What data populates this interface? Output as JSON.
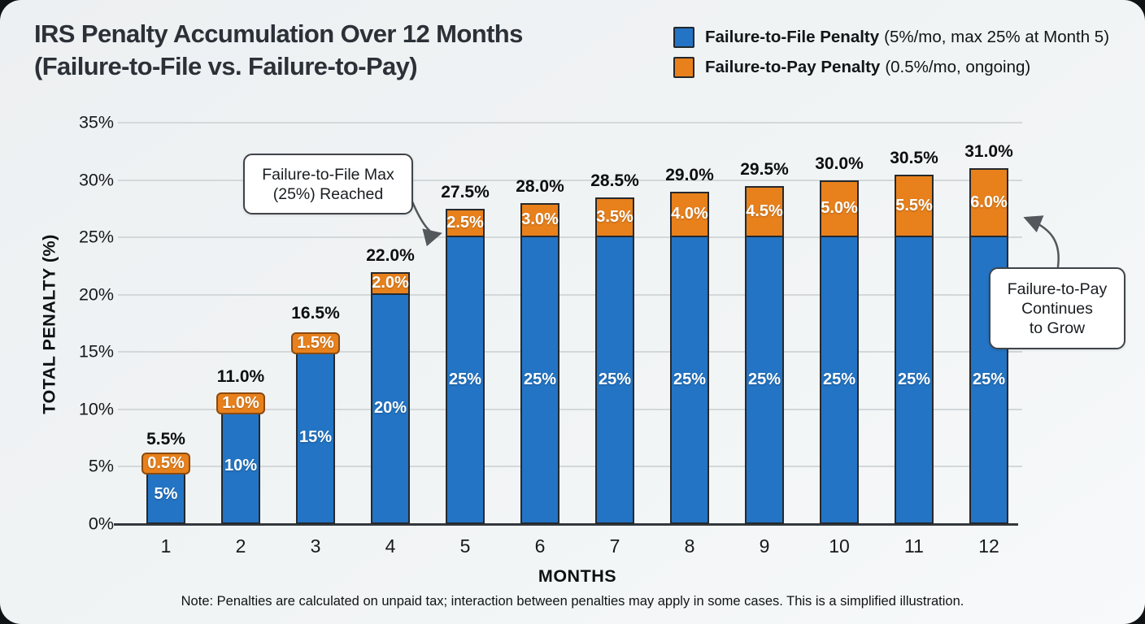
{
  "header": {
    "title_line1": "IRS Penalty Accumulation Over 12 Months",
    "title_line2": "(Failure-to-File vs. Failure-to-Pay)"
  },
  "legend": {
    "items": [
      {
        "swatch_color": "#2374c4",
        "name": "Failure-to-File Penalty",
        "detail": "(5%/mo, max 25% at Month 5)"
      },
      {
        "swatch_color": "#e8811c",
        "name": "Failure-to-Pay Penalty",
        "detail": "(0.5%/mo, ongoing)"
      }
    ]
  },
  "chart_data": {
    "type": "bar",
    "stacked": true,
    "title": "IRS Penalty Accumulation Over 12 Months (Failure-to-File vs. Failure-to-Pay)",
    "xlabel": "MONTHS",
    "ylabel": "TOTAL PENALTY (%)",
    "ylim": [
      0,
      35
    ],
    "yticks": [
      "0%",
      "5%",
      "10%",
      "15%",
      "20%",
      "25%",
      "30%",
      "35%"
    ],
    "grid": true,
    "legend_position": "top-right",
    "categories": [
      "1",
      "2",
      "3",
      "4",
      "5",
      "6",
      "7",
      "8",
      "9",
      "10",
      "11",
      "12"
    ],
    "series": [
      {
        "name": "Failure-to-File Penalty",
        "color": "#2374c4",
        "values": [
          5,
          10,
          15,
          20,
          25,
          25,
          25,
          25,
          25,
          25,
          25,
          25
        ],
        "labels": [
          "5%",
          "10%",
          "15%",
          "20%",
          "25%",
          "25%",
          "25%",
          "25%",
          "25%",
          "25%",
          "25%",
          "25%"
        ]
      },
      {
        "name": "Failure-to-Pay Penalty",
        "color": "#e8811c",
        "values": [
          0.5,
          1.0,
          1.5,
          2.0,
          2.5,
          3.0,
          3.5,
          4.0,
          4.5,
          5.0,
          5.5,
          6.0
        ],
        "labels": [
          "0.5%",
          "1.0%",
          "1.5%",
          "2.0%",
          "2.5%",
          "3.0%",
          "3.5%",
          "4.0%",
          "4.5%",
          "5.0%",
          "5.5%",
          "6.0%"
        ]
      }
    ],
    "totals": [
      5.5,
      11.0,
      16.5,
      22.0,
      27.5,
      28.0,
      28.5,
      29.0,
      29.5,
      30.0,
      30.5,
      31.0
    ],
    "total_labels": [
      "5.5%",
      "11.0%",
      "16.5%",
      "22.0%",
      "27.5%",
      "28.0%",
      "28.5%",
      "29.0%",
      "29.5%",
      "30.0%",
      "30.5%",
      "31.0%"
    ]
  },
  "annotations": [
    {
      "lines": [
        "Failure-to-File Max",
        "(25%) Reached"
      ]
    },
    {
      "lines": [
        "Failure-to-Pay",
        "Continues",
        "to Grow"
      ]
    }
  ],
  "note": "Note: Penalties are calculated on unpaid tax; interaction between penalties may apply in some cases. This is a simplified illustration."
}
